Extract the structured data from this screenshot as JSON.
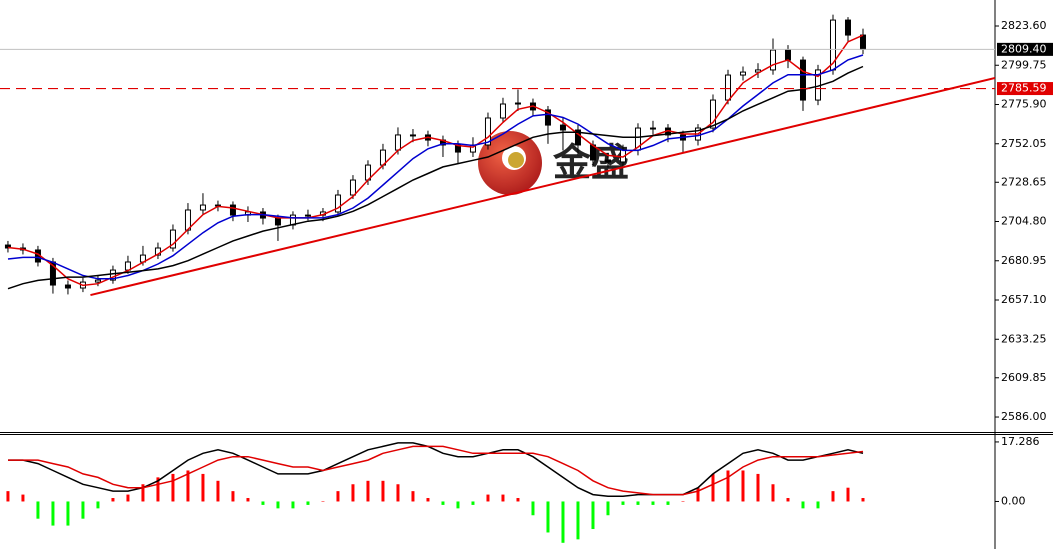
{
  "chart_data": [
    {
      "type": "candlestick",
      "xlim": [
        -0.53,
        65.8
      ],
      "ylim": [
        2576.9,
        2839.4
      ],
      "yticks": [
        {
          "value": 2823.6,
          "label": "2823.60"
        },
        2799.75,
        {
          "value": 2775.9,
          "label": "2775.90"
        },
        2752.05,
        2728.65,
        {
          "value": 2704.8,
          "label": "2704.80"
        },
        2680.95,
        {
          "value": 2657.1,
          "label": "2657.10"
        },
        2633.25,
        2609.85,
        {
          "value": 2586,
          "label": "2586.00"
        }
      ],
      "open": [
        2690.5,
        2688.7,
        2687.5,
        2680.2,
        2666.2,
        2664.4,
        2668.0,
        2669.2,
        2675.3,
        2680.2,
        2684.4,
        2688.7,
        2699.6,
        2711.8,
        2714.8,
        2714.8,
        2708.7,
        2710.6,
        2706.9,
        2702.7,
        2708.7,
        2708.7,
        2710.6,
        2720.9,
        2730.0,
        2739.1,
        2748.2,
        2757.4,
        2757.4,
        2754.3,
        2751.3,
        2747.0,
        2751.3,
        2767.7,
        2776.2,
        2776.8,
        2772.6,
        2763.4,
        2760.4,
        2751.3,
        2742.2,
        2741.0,
        2748.2,
        2761.6,
        2761.6,
        2757.4,
        2754.3,
        2761.6,
        2778.6,
        2793.8,
        2795.6,
        2796.9,
        2809.0,
        2802.9,
        2778.6,
        2796.9,
        2827.2,
        2818.1
      ],
      "high": [
        2693.0,
        2691.5,
        2690.0,
        2682.7,
        2669.0,
        2670.5,
        2672.0,
        2678.0,
        2684.0,
        2690.0,
        2692.0,
        2703.0,
        2716.0,
        2722.0,
        2717.5,
        2717.0,
        2714.0,
        2713.0,
        2709.0,
        2711.0,
        2712.0,
        2713.0,
        2724.0,
        2733.0,
        2742.0,
        2752.0,
        2762.0,
        2761.0,
        2760.0,
        2757.0,
        2754.0,
        2756.0,
        2771.0,
        2780.0,
        2785.0,
        2779.5,
        2775.0,
        2768.0,
        2763.5,
        2754.0,
        2746.5,
        2751.5,
        2764.5,
        2766.0,
        2764.0,
        2760.0,
        2764.0,
        2782.0,
        2797.0,
        2799.0,
        2801.0,
        2816.0,
        2812.0,
        2805.0,
        2800.0,
        2830.5,
        2829.0,
        2822.0
      ],
      "low": [
        2686.0,
        2684.8,
        2677.5,
        2661.0,
        2660.5,
        2661.9,
        2665.5,
        2667.0,
        2673.0,
        2678.0,
        2682.0,
        2686.5,
        2697.0,
        2709.0,
        2711.0,
        2705.0,
        2704.5,
        2703.0,
        2693.0,
        2700.0,
        2705.5,
        2705.0,
        2708.0,
        2718.5,
        2727.0,
        2736.5,
        2745.5,
        2753.0,
        2750.5,
        2744.0,
        2740.0,
        2744.0,
        2748.5,
        2765.0,
        2772.0,
        2769.0,
        2752.0,
        2748.0,
        2745.0,
        2738.0,
        2737.5,
        2738.5,
        2745.0,
        2757.5,
        2753.0,
        2746.5,
        2751.0,
        2759.0,
        2776.0,
        2790.5,
        2792.0,
        2794.0,
        2798.0,
        2772.0,
        2775.5,
        2794.0,
        2814.0,
        2806.5
      ],
      "close": [
        2688.7,
        2687.5,
        2680.2,
        2666.2,
        2664.4,
        2668.0,
        2669.2,
        2675.3,
        2680.2,
        2684.4,
        2688.7,
        2699.6,
        2711.8,
        2714.8,
        2714.8,
        2708.7,
        2710.6,
        2706.9,
        2702.7,
        2708.7,
        2708.7,
        2710.6,
        2720.9,
        2730.0,
        2739.1,
        2748.2,
        2757.4,
        2757.4,
        2754.3,
        2751.3,
        2747.0,
        2751.3,
        2767.7,
        2776.2,
        2776.8,
        2772.6,
        2763.4,
        2760.4,
        2751.3,
        2742.2,
        2741.0,
        2748.2,
        2761.6,
        2761.6,
        2757.4,
        2754.3,
        2761.6,
        2778.6,
        2793.8,
        2795.6,
        2796.9,
        2809.0,
        2802.9,
        2778.6,
        2796.9,
        2827.2,
        2818.1,
        2809.4
      ],
      "series": [
        {
          "color": "#e00000",
          "values": [
            2689,
            2688,
            2685,
            2678,
            2670,
            2666,
            2667,
            2671,
            2675,
            2680,
            2685,
            2691,
            2700,
            2709,
            2714,
            2713,
            2711,
            2709,
            2707,
            2707,
            2707,
            2709,
            2713,
            2720,
            2730,
            2739,
            2748,
            2754,
            2756,
            2754,
            2751,
            2750,
            2756,
            2765,
            2773,
            2775,
            2771,
            2765,
            2758,
            2751,
            2745,
            2744,
            2750,
            2757,
            2760,
            2758,
            2758,
            2765,
            2778,
            2789,
            2795,
            2800,
            2803,
            2796,
            2793,
            2801,
            2814,
            2818
          ]
        },
        {
          "color": "#0000d0",
          "values": [
            2682,
            2683,
            2683,
            2680,
            2676,
            2672,
            2670,
            2670,
            2672,
            2675,
            2679,
            2684,
            2691,
            2698,
            2704,
            2708,
            2709,
            2709,
            2708,
            2707,
            2707,
            2707,
            2709,
            2713,
            2719,
            2727,
            2735,
            2743,
            2749,
            2752,
            2752,
            2751,
            2753,
            2758,
            2764,
            2769,
            2770,
            2768,
            2764,
            2758,
            2752,
            2748,
            2748,
            2751,
            2755,
            2756,
            2757,
            2760,
            2767,
            2775,
            2782,
            2789,
            2794,
            2794,
            2794,
            2797,
            2803,
            2806
          ]
        },
        {
          "color": "#000000",
          "values": [
            2664,
            2667,
            2669,
            2670,
            2671,
            2671,
            2672,
            2673,
            2674,
            2675,
            2676,
            2678,
            2681,
            2685,
            2689,
            2693,
            2696,
            2699,
            2701,
            2703,
            2705,
            2706,
            2708,
            2711,
            2715,
            2720,
            2725,
            2730,
            2734,
            2738,
            2740,
            2742,
            2744,
            2748,
            2752,
            2756,
            2758,
            2759,
            2759,
            2758,
            2757,
            2756,
            2756,
            2757,
            2758,
            2759,
            2760,
            2763,
            2767,
            2772,
            2776,
            2780,
            2784,
            2785,
            2787,
            2790,
            2795,
            2799
          ]
        }
      ],
      "trendline": {
        "color": "#e00000",
        "x": [
          5.5,
          65.8
        ],
        "y": [
          2660.1,
          2792.0
        ]
      },
      "price_lines": [
        {
          "value": 2809.4,
          "label": "2809.40",
          "color": "#000000",
          "dashed": false
        },
        {
          "value": 2785.59,
          "color": "#e00000",
          "dashed": true
        }
      ]
    },
    {
      "type": "macd",
      "xlim": [
        -0.53,
        65.8
      ],
      "ylim": [
        -13.8,
        19.3
      ],
      "yticks": [
        17.286,
        {
          "value": 0,
          "label": "0.00"
        }
      ],
      "up_color": "#ff0000",
      "down_color": "#00ff00",
      "histogram": [
        3,
        2,
        -5,
        -7,
        -7,
        -5,
        -2,
        1,
        2,
        5,
        7,
        8,
        9,
        8,
        6,
        3,
        1,
        -1,
        -2,
        -2,
        -1,
        0,
        3,
        5,
        6,
        6,
        5,
        3,
        1,
        -1,
        -2,
        -1,
        2,
        2,
        1,
        -4,
        -9,
        -12,
        -11,
        -8,
        -4,
        -1,
        -1,
        -1,
        -1,
        0,
        4,
        8,
        9,
        9,
        8,
        5,
        1,
        -2,
        -2,
        3,
        4,
        1
      ],
      "series": [
        {
          "color": "#000000",
          "values": [
            12,
            12,
            11,
            9,
            7,
            5,
            4,
            3,
            3,
            4,
            6,
            9,
            12,
            14,
            15,
            14,
            12,
            10,
            8,
            8,
            8,
            9,
            11,
            13,
            15,
            16,
            17,
            17,
            16,
            14,
            13,
            13,
            14,
            15,
            15,
            13,
            10,
            7,
            4,
            2,
            1.5,
            1.5,
            2,
            2,
            2,
            2,
            4,
            8,
            11,
            14,
            15,
            14,
            12,
            12,
            13,
            14,
            15,
            14
          ]
        },
        {
          "color": "#e00000",
          "values": [
            12,
            12,
            12,
            11,
            10,
            8,
            7,
            5,
            4,
            4,
            5,
            6,
            8,
            10,
            12,
            13,
            13,
            12,
            11,
            10,
            10,
            9,
            10,
            11,
            12,
            14,
            15,
            16,
            16,
            16,
            15,
            14,
            14,
            14,
            14,
            14,
            13,
            11,
            9,
            6,
            4,
            3,
            2.5,
            2,
            2,
            2,
            3,
            5,
            7,
            10,
            12,
            13,
            13,
            13,
            13,
            13.5,
            14,
            14.5
          ]
        }
      ]
    }
  ],
  "logo": {
    "text": "金盛"
  }
}
